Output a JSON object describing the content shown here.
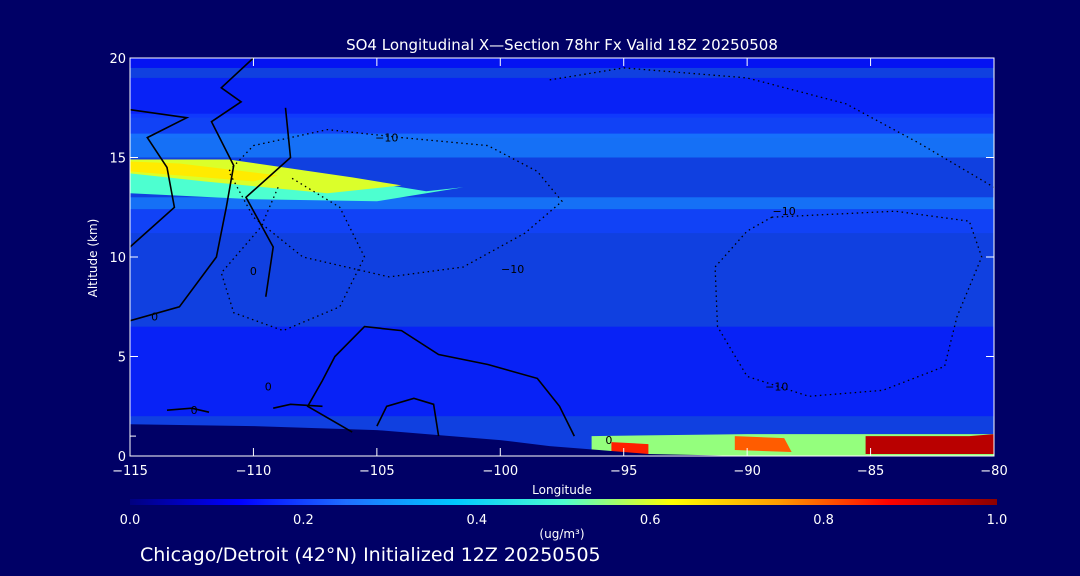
{
  "chart_data": {
    "type": "heatmap",
    "title": "SO4 Longitudinal X—Section 78hr  Fx Valid 18Z 20250508",
    "xlabel": "Longitude",
    "ylabel": "Altitude (km)",
    "xlim": [
      -115,
      -80
    ],
    "ylim": [
      0,
      20
    ],
    "x_ticks": [
      -115,
      -110,
      -105,
      -100,
      -95,
      -90,
      -85,
      -80
    ],
    "x_tick_labels": [
      "−115",
      "−110",
      "−105",
      "−100",
      "−95",
      "−90",
      "−85",
      "−80"
    ],
    "y_ticks": [
      0,
      5,
      10,
      15,
      20
    ],
    "y_tick_labels": [
      "0",
      "5",
      "10",
      "15",
      "20"
    ],
    "extra_y_tick": 1,
    "colorbar": {
      "label": "(ug/m³)",
      "range": [
        0.0,
        1.0
      ],
      "ticks": [
        0.0,
        0.2,
        0.4,
        0.6,
        0.8,
        1.0
      ],
      "tick_labels": [
        "0.0",
        "0.2",
        "0.4",
        "0.6",
        "0.8",
        "1.0"
      ],
      "colors": [
        "#000080",
        "#0000ff",
        "#1f6fff",
        "#00c8ff",
        "#4dffd0",
        "#ffff00",
        "#ff9900",
        "#ff0000",
        "#8b0000"
      ]
    },
    "background_color": "#1040e0",
    "terrain_color": "#000066",
    "terrain_profile": [
      [
        -115,
        1.6
      ],
      [
        -110,
        1.5
      ],
      [
        -105,
        1.3
      ],
      [
        -102,
        1.0
      ],
      [
        -100,
        0.8
      ],
      [
        -98,
        0.5
      ],
      [
        -96,
        0.3
      ],
      [
        -94,
        0.1
      ],
      [
        -90,
        0.0
      ],
      [
        -80,
        0.0
      ]
    ],
    "concentration_regions": [
      {
        "name": "upper-plume-mid",
        "level": 0.5,
        "points": [
          [
            -115,
            14.4
          ],
          [
            -111,
            14.6
          ],
          [
            -107,
            14.1
          ],
          [
            -103,
            13.3
          ],
          [
            -101.5,
            13.5
          ],
          [
            -105,
            12.8
          ],
          [
            -110,
            12.9
          ],
          [
            -115,
            13.2
          ]
        ]
      },
      {
        "name": "upper-plume-core",
        "level": 0.6,
        "points": [
          [
            -115,
            14.9
          ],
          [
            -111,
            14.9
          ],
          [
            -106,
            14.0
          ],
          [
            -104,
            13.6
          ],
          [
            -107,
            13.2
          ],
          [
            -112,
            13.8
          ],
          [
            -115,
            14.2
          ]
        ]
      },
      {
        "name": "upper-plume-peak",
        "level": 0.65,
        "points": [
          [
            -115,
            14.8
          ],
          [
            -113,
            14.7
          ],
          [
            -109,
            14.1
          ],
          [
            -110,
            13.8
          ],
          [
            -115,
            14.3
          ]
        ]
      },
      {
        "name": "surface-mid",
        "level": 0.55,
        "points": [
          [
            -96.3,
            1.0
          ],
          [
            -90,
            1.1
          ],
          [
            -85,
            1.1
          ],
          [
            -80,
            1.1
          ],
          [
            -80,
            0.0
          ],
          [
            -96.3,
            0.0
          ]
        ]
      },
      {
        "name": "surface-west",
        "level": 0.85,
        "points": [
          [
            -95.5,
            0.7
          ],
          [
            -94,
            0.6
          ],
          [
            -94,
            0.0
          ],
          [
            -95.5,
            0.0
          ]
        ]
      },
      {
        "name": "surface-mid-red",
        "level": 0.8,
        "points": [
          [
            -90.5,
            1.0
          ],
          [
            -88.5,
            0.9
          ],
          [
            -88.2,
            0.2
          ],
          [
            -90.5,
            0.3
          ]
        ]
      },
      {
        "name": "surface-east-red",
        "level": 0.95,
        "points": [
          [
            -85.2,
            1.0
          ],
          [
            -81,
            1.0
          ],
          [
            -80,
            1.1
          ],
          [
            -80,
            0.1
          ],
          [
            -85.2,
            0.1
          ]
        ]
      }
    ],
    "contours": [
      {
        "name": "temp-0",
        "level": 0,
        "style": "solid",
        "label": "0",
        "points": [
          [
            -115,
            10.5
          ],
          [
            -113.2,
            12.5
          ],
          [
            -113.5,
            14.5
          ],
          [
            -114.3,
            16.0
          ],
          [
            -112.7,
            17.0
          ],
          [
            -115,
            17.4
          ]
        ]
      },
      {
        "name": "temp-0-b",
        "level": 0,
        "style": "solid",
        "label": "0",
        "points": [
          [
            -115,
            6.8
          ],
          [
            -113,
            7.5
          ],
          [
            -111.5,
            10
          ],
          [
            -111.1,
            12.5
          ],
          [
            -110.8,
            14.6
          ],
          [
            -111.7,
            16.8
          ],
          [
            -110.5,
            17.8
          ],
          [
            -111.3,
            18.5
          ],
          [
            -110.0,
            20
          ]
        ]
      },
      {
        "name": "temp-0-c",
        "level": 0,
        "style": "solid",
        "label": "0",
        "points": [
          [
            -109.5,
            8.0
          ],
          [
            -109.2,
            10.5
          ],
          [
            -110.3,
            13
          ],
          [
            -108.5,
            15
          ],
          [
            -108.7,
            17.5
          ]
        ]
      },
      {
        "name": "temp-0-lower",
        "level": 0,
        "style": "solid",
        "label": "0",
        "points": [
          [
            -106,
            1.2
          ],
          [
            -107.8,
            2.5
          ],
          [
            -107.2,
            3.8
          ],
          [
            -106.7,
            5.0
          ],
          [
            -105.5,
            6.5
          ],
          [
            -104,
            6.3
          ],
          [
            -102.5,
            5.1
          ],
          [
            -100.5,
            4.6
          ],
          [
            -98.5,
            3.9
          ],
          [
            -97.6,
            2.5
          ],
          [
            -97.0,
            1.0
          ]
        ]
      },
      {
        "name": "temp-0-west",
        "level": 0,
        "style": "solid",
        "label": "0",
        "points": [
          [
            -113.5,
            2.3
          ],
          [
            -112.5,
            2.4
          ],
          [
            -111.8,
            2.2
          ]
        ]
      },
      {
        "name": "temp-0-mid",
        "level": 0,
        "style": "solid",
        "label": "0",
        "points": [
          [
            -105,
            1.5
          ],
          [
            -104.6,
            2.5
          ],
          [
            -103.5,
            2.9
          ],
          [
            -102.7,
            2.6
          ],
          [
            -102.5,
            1.0
          ]
        ]
      },
      {
        "name": "temp-0-mid2",
        "level": 0,
        "style": "solid",
        "label": "",
        "points": [
          [
            -109.2,
            2.4
          ],
          [
            -108.5,
            2.6
          ],
          [
            -107.2,
            2.5
          ]
        ]
      },
      {
        "name": "temp-minus10-west",
        "level": -10,
        "style": "dotted",
        "label": "−10",
        "points": [
          [
            -104,
            16.0
          ],
          [
            -100.5,
            15.6
          ],
          [
            -98.5,
            14.3
          ],
          [
            -97.5,
            12.8
          ],
          [
            -99,
            11.2
          ],
          [
            -101.5,
            9.5
          ],
          [
            -104.5,
            9.0
          ],
          [
            -108,
            10.0
          ],
          [
            -110,
            12.0
          ],
          [
            -111,
            14.3
          ],
          [
            -110,
            15.6
          ],
          [
            -107,
            16.4
          ],
          [
            -104,
            16.0
          ]
        ]
      },
      {
        "name": "temp-minus10-east",
        "level": -10,
        "style": "dotted",
        "label": "−10",
        "points": [
          [
            -89,
            12.0
          ],
          [
            -84,
            12.3
          ],
          [
            -81,
            11.8
          ],
          [
            -80.5,
            10.0
          ],
          [
            -81.5,
            7.0
          ],
          [
            -82.0,
            4.5
          ],
          [
            -84.5,
            3.3
          ],
          [
            -87.5,
            3.0
          ],
          [
            -90,
            4.0
          ],
          [
            -91.2,
            6.5
          ],
          [
            -91.3,
            9.5
          ],
          [
            -90,
            11.3
          ],
          [
            -89,
            12.0
          ]
        ]
      },
      {
        "name": "temp-minus10-upper",
        "level": -10,
        "style": "dotted",
        "label": "",
        "points": [
          [
            -98,
            18.9
          ],
          [
            -95,
            19.5
          ],
          [
            -90,
            19.0
          ],
          [
            -86,
            17.7
          ],
          [
            -83,
            15.7
          ],
          [
            -80,
            13.5
          ]
        ]
      },
      {
        "name": "temp-minus10-left",
        "level": -10,
        "style": "dotted",
        "label": "",
        "points": [
          [
            -109,
            13.5
          ],
          [
            -109.7,
            11.5
          ],
          [
            -111.3,
            9.2
          ],
          [
            -110.8,
            7.2
          ],
          [
            -108.8,
            6.3
          ],
          [
            -106.5,
            7.5
          ],
          [
            -105.5,
            10.0
          ],
          [
            -106.5,
            12.5
          ],
          [
            -108.5,
            14.0
          ]
        ]
      }
    ],
    "contour_labels": [
      {
        "text": "−10",
        "x": -104.6,
        "y": 16.0
      },
      {
        "text": "−10",
        "x": -99.5,
        "y": 9.4
      },
      {
        "text": "−10",
        "x": -88.5,
        "y": 12.3
      },
      {
        "text": "−10",
        "x": -88.8,
        "y": 3.5
      },
      {
        "text": "0",
        "x": -110.0,
        "y": 9.3
      },
      {
        "text": "0",
        "x": -114.0,
        "y": 7.0
      },
      {
        "text": "0",
        "x": -112.4,
        "y": 2.3
      },
      {
        "text": "0",
        "x": -109.4,
        "y": 3.5
      },
      {
        "text": "0",
        "x": -95.6,
        "y": 0.8
      }
    ]
  },
  "footer": {
    "text": "Chicago/Detroit (42°N) Initialized 12Z 20250505"
  }
}
